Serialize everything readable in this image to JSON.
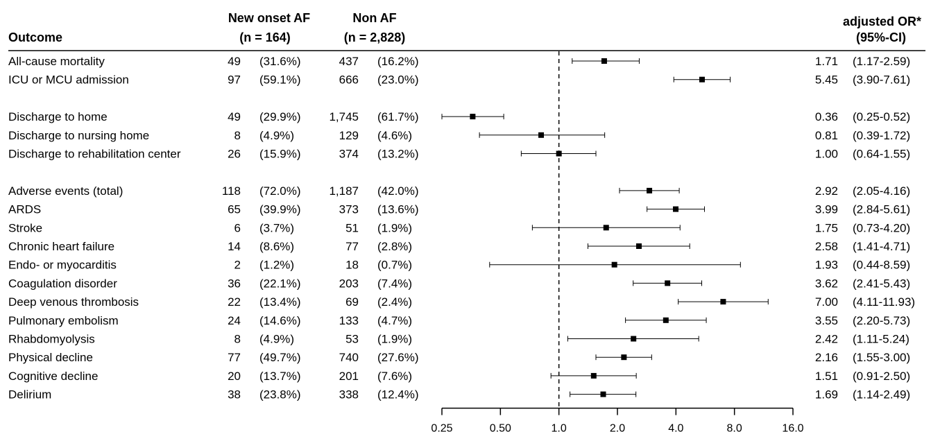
{
  "chart_data": {
    "type": "forest",
    "headers": {
      "outcome": "Outcome",
      "group1_name": "New onset AF",
      "group1_n": "(n = 164)",
      "group2_name": "Non AF",
      "group2_n": "(n = 2,828)",
      "or_name": "adjusted OR*",
      "or_ci": "(95%-CI)"
    },
    "x_axis": {
      "scale": "log",
      "range": [
        0.25,
        16.0
      ],
      "ticks": [
        0.25,
        0.5,
        1.0,
        2.0,
        4.0,
        8.0,
        16.0
      ],
      "tick_labels": [
        "0.25",
        "0.50",
        "1.0",
        "2.0",
        "4.0",
        "8.0",
        "16.0"
      ],
      "reference_line": 1.0
    },
    "groups": [
      {
        "rows": [
          {
            "outcome": "All-cause mortality",
            "af_n": "49",
            "af_pct": "(31.6%)",
            "non_n": "437",
            "non_pct": "(16.2%)",
            "or": 1.71,
            "lo": 1.17,
            "hi": 2.59,
            "or_label": "1.71",
            "ci_label": "(1.17-2.59)"
          },
          {
            "outcome": "ICU or MCU admission",
            "af_n": "97",
            "af_pct": "(59.1%)",
            "non_n": "666",
            "non_pct": "(23.0%)",
            "or": 5.45,
            "lo": 3.9,
            "hi": 7.61,
            "or_label": "5.45",
            "ci_label": "(3.90-7.61)"
          }
        ]
      },
      {
        "rows": [
          {
            "outcome": "Discharge to home",
            "af_n": "49",
            "af_pct": "(29.9%)",
            "non_n": "1,745",
            "non_pct": "(61.7%)",
            "or": 0.36,
            "lo": 0.25,
            "hi": 0.52,
            "or_label": "0.36",
            "ci_label": "(0.25-0.52)"
          },
          {
            "outcome": "Discharge to nursing home",
            "af_n": "8",
            "af_pct": "(4.9%)",
            "non_n": "129",
            "non_pct": "(4.6%)",
            "or": 0.81,
            "lo": 0.39,
            "hi": 1.72,
            "or_label": "0.81",
            "ci_label": "(0.39-1.72)"
          },
          {
            "outcome": "Discharge to rehabilitation center",
            "af_n": "26",
            "af_pct": "(15.9%)",
            "non_n": "374",
            "non_pct": "(13.2%)",
            "or": 1.0,
            "lo": 0.64,
            "hi": 1.55,
            "or_label": "1.00",
            "ci_label": "(0.64-1.55)"
          }
        ]
      },
      {
        "rows": [
          {
            "outcome": "Adverse events (total)",
            "af_n": "118",
            "af_pct": "(72.0%)",
            "non_n": "1,187",
            "non_pct": "(42.0%)",
            "or": 2.92,
            "lo": 2.05,
            "hi": 4.16,
            "or_label": "2.92",
            "ci_label": "(2.05-4.16)"
          },
          {
            "outcome": "ARDS",
            "af_n": "65",
            "af_pct": "(39.9%)",
            "non_n": "373",
            "non_pct": "(13.6%)",
            "or": 3.99,
            "lo": 2.84,
            "hi": 5.61,
            "or_label": "3.99",
            "ci_label": "(2.84-5.61)"
          },
          {
            "outcome": "Stroke",
            "af_n": "6",
            "af_pct": "(3.7%)",
            "non_n": "51",
            "non_pct": "(1.9%)",
            "or": 1.75,
            "lo": 0.73,
            "hi": 4.2,
            "or_label": "1.75",
            "ci_label": "(0.73-4.20)"
          },
          {
            "outcome": "Chronic heart failure",
            "af_n": "14",
            "af_pct": "(8.6%)",
            "non_n": "77",
            "non_pct": "(2.8%)",
            "or": 2.58,
            "lo": 1.41,
            "hi": 4.71,
            "or_label": "2.58",
            "ci_label": "(1.41-4.71)"
          },
          {
            "outcome": "Endo- or myocarditis",
            "af_n": "2",
            "af_pct": "(1.2%)",
            "non_n": "18",
            "non_pct": "(0.7%)",
            "or": 1.93,
            "lo": 0.44,
            "hi": 8.59,
            "or_label": "1.93",
            "ci_label": "(0.44-8.59)"
          },
          {
            "outcome": "Coagulation disorder",
            "af_n": "36",
            "af_pct": "(22.1%)",
            "non_n": "203",
            "non_pct": "(7.4%)",
            "or": 3.62,
            "lo": 2.41,
            "hi": 5.43,
            "or_label": "3.62",
            "ci_label": "(2.41-5.43)"
          },
          {
            "outcome": "Deep venous thrombosis",
            "af_n": "22",
            "af_pct": "(13.4%)",
            "non_n": "69",
            "non_pct": "(2.4%)",
            "or": 7.0,
            "lo": 4.11,
            "hi": 11.93,
            "or_label": "7.00",
            "ci_label": "(4.11-11.93)"
          },
          {
            "outcome": "Pulmonary embolism",
            "af_n": "24",
            "af_pct": "(14.6%)",
            "non_n": "133",
            "non_pct": "(4.7%)",
            "or": 3.55,
            "lo": 2.2,
            "hi": 5.73,
            "or_label": "3.55",
            "ci_label": "(2.20-5.73)"
          },
          {
            "outcome": "Rhabdomyolysis",
            "af_n": "8",
            "af_pct": "(4.9%)",
            "non_n": "53",
            "non_pct": "(1.9%)",
            "or": 2.42,
            "lo": 1.11,
            "hi": 5.24,
            "or_label": "2.42",
            "ci_label": "(1.11-5.24)"
          },
          {
            "outcome": "Physical decline",
            "af_n": "77",
            "af_pct": "(49.7%)",
            "non_n": "740",
            "non_pct": "(27.6%)",
            "or": 2.16,
            "lo": 1.55,
            "hi": 3.0,
            "or_label": "2.16",
            "ci_label": "(1.55-3.00)"
          },
          {
            "outcome": "Cognitive decline",
            "af_n": "20",
            "af_pct": "(13.7%)",
            "non_n": "201",
            "non_pct": "(7.6%)",
            "or": 1.51,
            "lo": 0.91,
            "hi": 2.5,
            "or_label": "1.51",
            "ci_label": "(0.91-2.50)"
          },
          {
            "outcome": "Delirium",
            "af_n": "38",
            "af_pct": "(23.8%)",
            "non_n": "338",
            "non_pct": "(12.4%)",
            "or": 1.69,
            "lo": 1.14,
            "hi": 2.49,
            "or_label": "1.69",
            "ci_label": "(1.14-2.49)"
          }
        ]
      }
    ]
  }
}
